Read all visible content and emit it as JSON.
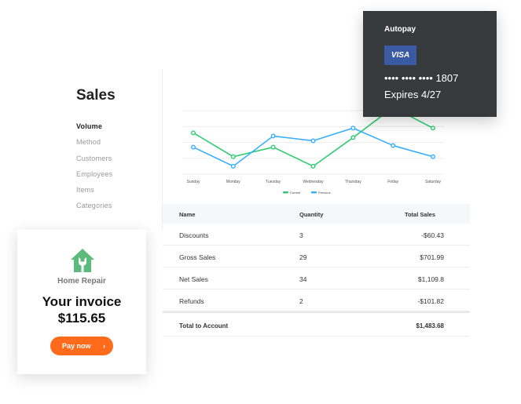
{
  "sidebar": {
    "title": "Sales",
    "items": [
      {
        "label": "Volume",
        "active": true
      },
      {
        "label": "Method"
      },
      {
        "label": "Customers"
      },
      {
        "label": "Employees"
      },
      {
        "label": "Items"
      },
      {
        "label": "Categories"
      }
    ]
  },
  "chart_data": {
    "type": "line",
    "categories": [
      "Sunday",
      "Monday",
      "Tuesday",
      "Wednesday",
      "Thursday",
      "Friday",
      "Saturday"
    ],
    "series": [
      {
        "name": "Current",
        "color": "#2ecc71",
        "values": [
          2.6,
          1.1,
          1.7,
          0.5,
          2.3,
          4.2,
          2.9
        ]
      },
      {
        "name": "Previous",
        "color": "#35aeff",
        "values": [
          1.7,
          0.5,
          2.4,
          2.1,
          2.9,
          1.8,
          1.1
        ]
      }
    ],
    "ylim": [
      0,
      4
    ],
    "grid": true,
    "legend": "bottom",
    "xlabel": "",
    "ylabel": ""
  },
  "table": {
    "headers": [
      "Name",
      "Quantity",
      "Total Sales"
    ],
    "rows": [
      [
        "Discounts",
        "3",
        "-$60.43"
      ],
      [
        "Gross Sales",
        "29",
        "$701.99"
      ],
      [
        "Net Sales",
        "34",
        "$1,109.8"
      ],
      [
        "Refunds",
        "2",
        "-$101.82"
      ]
    ],
    "total": {
      "label": "Total to Account",
      "value": "$1,483.68"
    }
  },
  "autopay": {
    "title": "Autopay",
    "brand": "VISA",
    "number": "•••• •••• •••• 1807",
    "expires": "Expires 4/27"
  },
  "invoice": {
    "brand": "Home Repair",
    "title": "Your invoice",
    "amount": "$115.65",
    "button": "Pay now",
    "icon": "house-wrench-icon",
    "accent": "#ff6b1a"
  }
}
